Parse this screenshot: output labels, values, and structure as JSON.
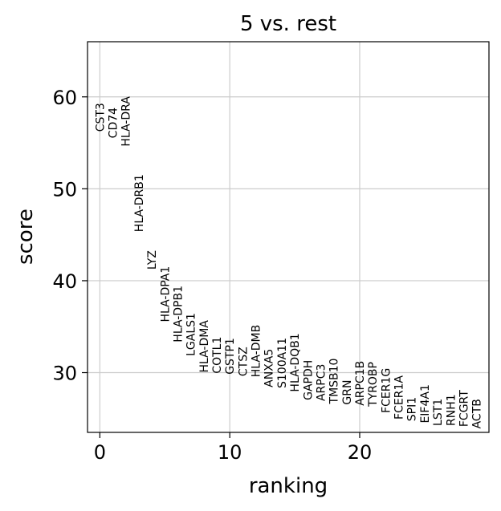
{
  "chart_data": {
    "type": "scatter",
    "title": "5 vs. rest",
    "xlabel": "ranking",
    "ylabel": "score",
    "xlim": [
      -0.95,
      29.95
    ],
    "ylim": [
      23.5,
      66.0
    ],
    "xticks": [
      0,
      10,
      20
    ],
    "yticks": [
      30,
      40,
      50,
      60
    ],
    "grid": true,
    "points": [
      {
        "x": 0,
        "label": "CST3",
        "y": 56.2
      },
      {
        "x": 1,
        "label": "CD74",
        "y": 55.5
      },
      {
        "x": 2,
        "label": "HLA-DRA",
        "y": 54.6
      },
      {
        "x": 3,
        "label": "HLA-DRB1",
        "y": 45.3
      },
      {
        "x": 4,
        "label": "LYZ",
        "y": 41.2
      },
      {
        "x": 5,
        "label": "HLA-DPA1",
        "y": 35.5
      },
      {
        "x": 6,
        "label": "HLA-DPB1",
        "y": 33.3
      },
      {
        "x": 7,
        "label": "LGALS1",
        "y": 31.8
      },
      {
        "x": 8,
        "label": "HLA-DMA",
        "y": 30.0
      },
      {
        "x": 9,
        "label": "COTL1",
        "y": 29.9
      },
      {
        "x": 10,
        "label": "GSTP1",
        "y": 29.8
      },
      {
        "x": 11,
        "label": "CTSZ",
        "y": 29.6
      },
      {
        "x": 12,
        "label": "HLA-DMB",
        "y": 29.5
      },
      {
        "x": 13,
        "label": "ANXA5",
        "y": 28.4
      },
      {
        "x": 14,
        "label": "S100A11",
        "y": 28.3
      },
      {
        "x": 15,
        "label": "HLA-DQB1",
        "y": 27.9
      },
      {
        "x": 16,
        "label": "GAPDH",
        "y": 27.0
      },
      {
        "x": 17,
        "label": "ARPC3",
        "y": 26.9
      },
      {
        "x": 18,
        "label": "TMSB10",
        "y": 26.6
      },
      {
        "x": 19,
        "label": "GRN",
        "y": 26.5
      },
      {
        "x": 20,
        "label": "ARPC1B",
        "y": 26.4
      },
      {
        "x": 21,
        "label": "TYROBP",
        "y": 26.3
      },
      {
        "x": 22,
        "label": "FCER1G",
        "y": 25.6
      },
      {
        "x": 23,
        "label": "FCER1A",
        "y": 24.9
      },
      {
        "x": 24,
        "label": "SPI1",
        "y": 24.7
      },
      {
        "x": 25,
        "label": "EIF4A1",
        "y": 24.5
      },
      {
        "x": 26,
        "label": "LST1",
        "y": 24.2
      },
      {
        "x": 27,
        "label": "RNH1",
        "y": 24.2
      },
      {
        "x": 28,
        "label": "FCGRT",
        "y": 24.1
      },
      {
        "x": 29,
        "label": "ACTB",
        "y": 23.9
      }
    ]
  },
  "colors": {
    "grid": "#cccccc",
    "axis": "#000000",
    "background": "#ffffff"
  }
}
